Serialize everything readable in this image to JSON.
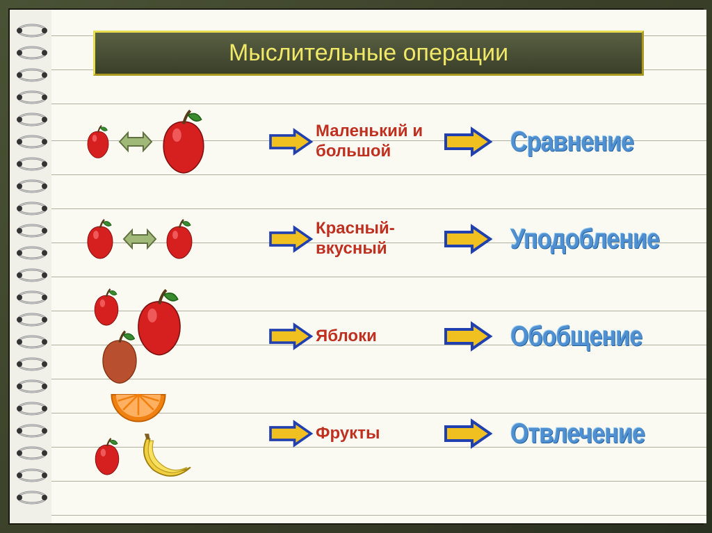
{
  "title": "Мыслительные операции",
  "colors": {
    "page_bg": "#fafaf2",
    "frame_bg": "#4a5236",
    "title_border": "#d4c838",
    "title_text": "#f0e868",
    "desc_text": "#c03020",
    "operation_text": "#5090d0",
    "arrow_fill": "#f0c020",
    "arrow_stroke": "#2040b0",
    "double_arrow_fill": "#a0b878",
    "apple_red": "#d62020",
    "apple_leaf": "#3a8a30",
    "line_color": "#b0b0a0"
  },
  "rows": [
    {
      "imagery": "small-big-apples",
      "description": "Маленький и большой",
      "operation": "Сравнение"
    },
    {
      "imagery": "same-apples",
      "description": "Красный-вкусный",
      "operation": "Уподобление"
    },
    {
      "imagery": "apple-group",
      "description": "Яблоки",
      "operation": "Обобщение"
    },
    {
      "imagery": "fruit-group",
      "description": "Фрукты",
      "operation": "Отвлечение"
    }
  ]
}
